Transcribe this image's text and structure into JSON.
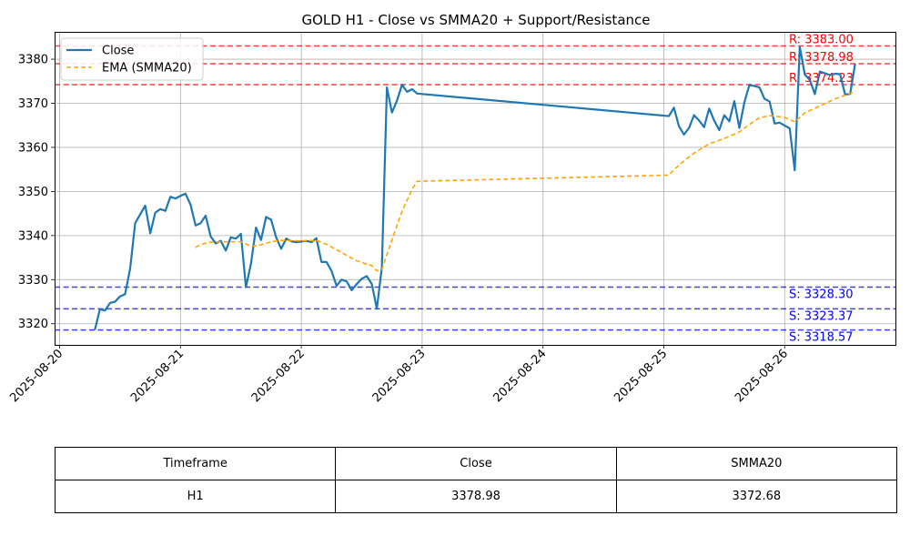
{
  "chart_data": {
    "type": "line",
    "title": "GOLD H1 - Close vs SMMA20 + Support/Resistance",
    "xlabel": "",
    "ylabel": "",
    "x_axis": "date",
    "x_ticks": [
      "2025-08-20",
      "2025-08-21",
      "2025-08-22",
      "2025-08-23",
      "2025-08-24",
      "2025-08-25",
      "2025-08-26"
    ],
    "y_ticks": [
      3320,
      3330,
      3340,
      3350,
      3360,
      3370,
      3380
    ],
    "xlim": [
      "2025-08-19 23:00",
      "2025-08-26 22:00"
    ],
    "ylim": [
      3315.2,
      3386.2
    ],
    "grid": true,
    "legend_position": "top-left",
    "series": [
      {
        "name": "Close",
        "color": "#1f77b4",
        "style": "solid",
        "points": [
          [
            "2025-08-20 07:00",
            3318.6
          ],
          [
            "2025-08-20 08:00",
            3323.3
          ],
          [
            "2025-08-20 09:00",
            3323.0
          ],
          [
            "2025-08-20 10:00",
            3324.7
          ],
          [
            "2025-08-20 11:00",
            3325.0
          ],
          [
            "2025-08-20 12:00",
            3326.2
          ],
          [
            "2025-08-20 13:00",
            3326.7
          ],
          [
            "2025-08-20 14:00",
            3332.5
          ],
          [
            "2025-08-20 15:00",
            3342.8
          ],
          [
            "2025-08-20 16:00",
            3344.8
          ],
          [
            "2025-08-20 17:00",
            3346.8
          ],
          [
            "2025-08-20 18:00",
            3340.5
          ],
          [
            "2025-08-20 19:00",
            3345.2
          ],
          [
            "2025-08-20 20:00",
            3346.0
          ],
          [
            "2025-08-20 21:00",
            3345.6
          ],
          [
            "2025-08-20 22:00",
            3348.8
          ],
          [
            "2025-08-20 23:00",
            3348.4
          ],
          [
            "2025-08-21 00:00",
            3349.0
          ],
          [
            "2025-08-21 01:00",
            3349.5
          ],
          [
            "2025-08-21 02:00",
            3347.0
          ],
          [
            "2025-08-21 03:00",
            3342.3
          ],
          [
            "2025-08-21 04:00",
            3342.8
          ],
          [
            "2025-08-21 05:00",
            3344.5
          ],
          [
            "2025-08-21 06:00",
            3339.8
          ],
          [
            "2025-08-21 07:00",
            3338.2
          ],
          [
            "2025-08-21 08:00",
            3338.8
          ],
          [
            "2025-08-21 09:00",
            3336.6
          ],
          [
            "2025-08-21 10:00",
            3339.6
          ],
          [
            "2025-08-21 11:00",
            3339.3
          ],
          [
            "2025-08-21 12:00",
            3340.4
          ],
          [
            "2025-08-21 13:00",
            3328.3
          ],
          [
            "2025-08-21 14:00",
            3333.6
          ],
          [
            "2025-08-21 15:00",
            3341.8
          ],
          [
            "2025-08-21 16:00",
            3339.0
          ],
          [
            "2025-08-21 17:00",
            3344.2
          ],
          [
            "2025-08-21 18:00",
            3343.6
          ],
          [
            "2025-08-21 19:00",
            3339.6
          ],
          [
            "2025-08-21 20:00",
            3337.0
          ],
          [
            "2025-08-21 21:00",
            3339.3
          ],
          [
            "2025-08-21 22:00",
            3338.7
          ],
          [
            "2025-08-21 23:00",
            3338.5
          ],
          [
            "2025-08-22 01:00",
            3338.8
          ],
          [
            "2025-08-22 02:00",
            3338.5
          ],
          [
            "2025-08-22 03:00",
            3339.4
          ],
          [
            "2025-08-22 04:00",
            3334.0
          ],
          [
            "2025-08-22 05:00",
            3334.0
          ],
          [
            "2025-08-22 06:00",
            3332.0
          ],
          [
            "2025-08-22 07:00",
            3328.6
          ],
          [
            "2025-08-22 08:00",
            3330.0
          ],
          [
            "2025-08-22 09:00",
            3329.6
          ],
          [
            "2025-08-22 10:00",
            3327.6
          ],
          [
            "2025-08-22 11:00",
            3329.0
          ],
          [
            "2025-08-22 12:00",
            3330.2
          ],
          [
            "2025-08-22 13:00",
            3330.8
          ],
          [
            "2025-08-22 14:00",
            3329.0
          ],
          [
            "2025-08-22 15:00",
            3323.4
          ],
          [
            "2025-08-22 16:00",
            3332.8
          ],
          [
            "2025-08-22 17:00",
            3373.6
          ],
          [
            "2025-08-22 18:00",
            3367.9
          ],
          [
            "2025-08-22 19:00",
            3370.6
          ],
          [
            "2025-08-22 20:00",
            3374.2
          ],
          [
            "2025-08-22 21:00",
            3372.6
          ],
          [
            "2025-08-22 22:00",
            3373.2
          ],
          [
            "2025-08-22 23:00",
            3372.2
          ],
          [
            "2025-08-25 01:00",
            3367.1
          ],
          [
            "2025-08-25 02:00",
            3369.0
          ],
          [
            "2025-08-25 03:00",
            3364.8
          ],
          [
            "2025-08-25 04:00",
            3362.9
          ],
          [
            "2025-08-25 05:00",
            3364.4
          ],
          [
            "2025-08-25 06:00",
            3367.3
          ],
          [
            "2025-08-25 07:00",
            3366.1
          ],
          [
            "2025-08-25 08:00",
            3364.6
          ],
          [
            "2025-08-25 09:00",
            3368.8
          ],
          [
            "2025-08-25 10:00",
            3366.1
          ],
          [
            "2025-08-25 11:00",
            3363.9
          ],
          [
            "2025-08-25 12:00",
            3367.3
          ],
          [
            "2025-08-25 13:00",
            3365.9
          ],
          [
            "2025-08-25 14:00",
            3370.5
          ],
          [
            "2025-08-25 15:00",
            3364.4
          ],
          [
            "2025-08-25 16:00",
            3370.2
          ],
          [
            "2025-08-25 17:00",
            3374.2
          ],
          [
            "2025-08-25 18:00",
            3373.9
          ],
          [
            "2025-08-25 19:00",
            3373.6
          ],
          [
            "2025-08-25 20:00",
            3371.0
          ],
          [
            "2025-08-25 21:00",
            3370.4
          ],
          [
            "2025-08-25 22:00",
            3365.4
          ],
          [
            "2025-08-25 23:00",
            3365.6
          ],
          [
            "2025-08-26 01:00",
            3364.3
          ],
          [
            "2025-08-26 02:00",
            3354.8
          ],
          [
            "2025-08-26 03:00",
            3382.8
          ],
          [
            "2025-08-26 04:00",
            3376.5
          ],
          [
            "2025-08-26 05:00",
            3375.3
          ],
          [
            "2025-08-26 06:00",
            3372.1
          ],
          [
            "2025-08-26 07:00",
            3377.2
          ],
          [
            "2025-08-26 08:00",
            3376.8
          ],
          [
            "2025-08-26 09:00",
            3376.4
          ],
          [
            "2025-08-26 10:00",
            3376.7
          ],
          [
            "2025-08-26 11:00",
            3376.6
          ],
          [
            "2025-08-26 12:00",
            3372.0
          ],
          [
            "2025-08-26 13:00",
            3372.1
          ],
          [
            "2025-08-26 14:00",
            3378.98
          ]
        ]
      },
      {
        "name": "EMA (SMMA20)",
        "color": "#ffa500",
        "style": "dashed",
        "points": [
          [
            "2025-08-21 03:00",
            3337.3
          ],
          [
            "2025-08-21 04:00",
            3338.0
          ],
          [
            "2025-08-21 06:00",
            3338.5
          ],
          [
            "2025-08-21 09:00",
            3338.6
          ],
          [
            "2025-08-21 12:00",
            3338.6
          ],
          [
            "2025-08-21 14:00",
            3337.6
          ],
          [
            "2025-08-21 16:00",
            3337.9
          ],
          [
            "2025-08-21 18:00",
            3338.6
          ],
          [
            "2025-08-21 20:00",
            3338.9
          ],
          [
            "2025-08-22 00:00",
            3338.8
          ],
          [
            "2025-08-22 03:00",
            3338.9
          ],
          [
            "2025-08-22 05:00",
            3338.0
          ],
          [
            "2025-08-22 07:00",
            3336.8
          ],
          [
            "2025-08-22 09:00",
            3335.5
          ],
          [
            "2025-08-22 11:00",
            3334.3
          ],
          [
            "2025-08-22 13:00",
            3333.5
          ],
          [
            "2025-08-22 14:00",
            3333.2
          ],
          [
            "2025-08-22 15:00",
            3332.0
          ],
          [
            "2025-08-22 16:00",
            3332.3
          ],
          [
            "2025-08-22 18:00",
            3339.0
          ],
          [
            "2025-08-22 20:00",
            3345.5
          ],
          [
            "2025-08-22 22:00",
            3350.5
          ],
          [
            "2025-08-22 23:00",
            3352.3
          ],
          [
            "2025-08-25 01:00",
            3353.7
          ],
          [
            "2025-08-25 03:00",
            3356.0
          ],
          [
            "2025-08-25 06:00",
            3358.7
          ],
          [
            "2025-08-25 09:00",
            3360.8
          ],
          [
            "2025-08-25 12:00",
            3362.0
          ],
          [
            "2025-08-25 15:00",
            3363.5
          ],
          [
            "2025-08-25 17:00",
            3365.2
          ],
          [
            "2025-08-25 19:00",
            3366.7
          ],
          [
            "2025-08-25 21:00",
            3367.2
          ],
          [
            "2025-08-26 00:00",
            3366.8
          ],
          [
            "2025-08-26 02:00",
            3365.8
          ],
          [
            "2025-08-26 04:00",
            3367.8
          ],
          [
            "2025-08-26 07:00",
            3369.4
          ],
          [
            "2025-08-26 10:00",
            3371.0
          ],
          [
            "2025-08-26 12:00",
            3371.8
          ],
          [
            "2025-08-26 14:00",
            3372.68
          ]
        ]
      }
    ],
    "levels": [
      {
        "kind": "resistance",
        "value": 3383.0,
        "label": "R: 3383.00",
        "color": "#ff0000"
      },
      {
        "kind": "resistance",
        "value": 3378.98,
        "label": "R: 3378.98",
        "color": "#ff0000"
      },
      {
        "kind": "resistance",
        "value": 3374.23,
        "label": "R: 3374.23",
        "color": "#ff0000"
      },
      {
        "kind": "support",
        "value": 3328.3,
        "label": "S: 3328.30",
        "color": "#0000ff"
      },
      {
        "kind": "support",
        "value": 3323.37,
        "label": "S: 3323.37",
        "color": "#0000ff"
      },
      {
        "kind": "support",
        "value": 3318.57,
        "label": "S: 3318.57",
        "color": "#0000ff"
      }
    ]
  },
  "table": {
    "headers": [
      "Timeframe",
      "Close",
      "SMMA20"
    ],
    "rows": [
      [
        "H1",
        "3378.98",
        "3372.68"
      ]
    ]
  }
}
